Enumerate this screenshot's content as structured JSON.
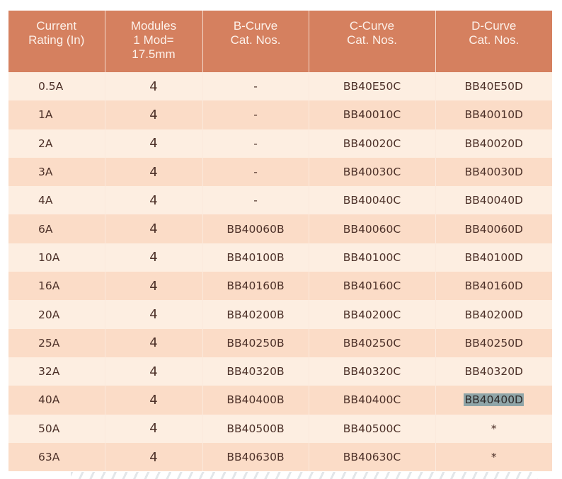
{
  "table": {
    "headers": [
      [
        "Current",
        "Rating (In)"
      ],
      [
        "Modules",
        "1 Mod=",
        "17.5mm"
      ],
      [
        "B-Curve",
        "Cat. Nos."
      ],
      [
        "C-Curve",
        "Cat. Nos."
      ],
      [
        "D-Curve",
        "Cat. Nos."
      ]
    ],
    "rows": [
      [
        "0.5A",
        "4",
        "-",
        "BB40E50C",
        "BB40E50D"
      ],
      [
        "1A",
        "4",
        "-",
        "BB40010C",
        "BB40010D"
      ],
      [
        "2A",
        "4",
        "-",
        "BB40020C",
        "BB40020D"
      ],
      [
        "3A",
        "4",
        "-",
        "BB40030C",
        "BB40030D"
      ],
      [
        "4A",
        "4",
        "-",
        "BB40040C",
        "BB40040D"
      ],
      [
        "6A",
        "4",
        "BB40060B",
        "BB40060C",
        "BB40060D"
      ],
      [
        "10A",
        "4",
        "BB40100B",
        "BB40100C",
        "BB40100D"
      ],
      [
        "16A",
        "4",
        "BB40160B",
        "BB40160C",
        "BB40160D"
      ],
      [
        "20A",
        "4",
        "BB40200B",
        "BB40200C",
        "BB40200D"
      ],
      [
        "25A",
        "4",
        "BB40250B",
        "BB40250C",
        "BB40250D"
      ],
      [
        "32A",
        "4",
        "BB40320B",
        "BB40320C",
        "BB40320D"
      ],
      [
        "40A",
        "4",
        "BB40400B",
        "BB40400C",
        "BB40400D"
      ],
      [
        "50A",
        "4",
        "BB40500B",
        "BB40500C",
        "*"
      ],
      [
        "63A",
        "4",
        "BB40630B",
        "BB40630C",
        "*"
      ]
    ],
    "selected_text": "BB40400D",
    "colors": {
      "header": "#d5805f",
      "row_light": "#fdeee1",
      "row_dark": "#fbdcc7",
      "text": "#4d3129",
      "selection": "#8fa5a8"
    }
  }
}
